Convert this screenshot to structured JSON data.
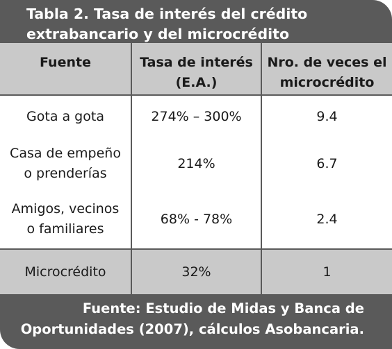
{
  "title": "Tabla  2. Tasa de interés del crédito\nextrabancario y del microcrédito",
  "table": {
    "headers": [
      "Fuente",
      "Tasa de interés\n(E.A.)",
      "Nro. de veces el\nmicrocrédito"
    ],
    "rows": [
      [
        "Gota a gota",
        "274% – 300%",
        "9.4"
      ],
      [
        "Casa de empeño\no prenderías",
        "214%",
        "6.7"
      ],
      [
        "Amigos, vecinos\no familiares",
        "68% - 78%",
        "2.4"
      ],
      [
        "Microcrédito",
        "32%",
        "1"
      ]
    ]
  },
  "source": "Fuente: Estudio de Midas y Banca de\nOportunidades (2007), cálculos Asobancaria.",
  "colors": {
    "frame": "#5a5a5a",
    "header_row": "#c9c9c9",
    "highlight_row": "#c9c9c9",
    "body_row": "#ffffff",
    "text_light": "#ffffff",
    "text_dark": "#1a1a1a"
  }
}
